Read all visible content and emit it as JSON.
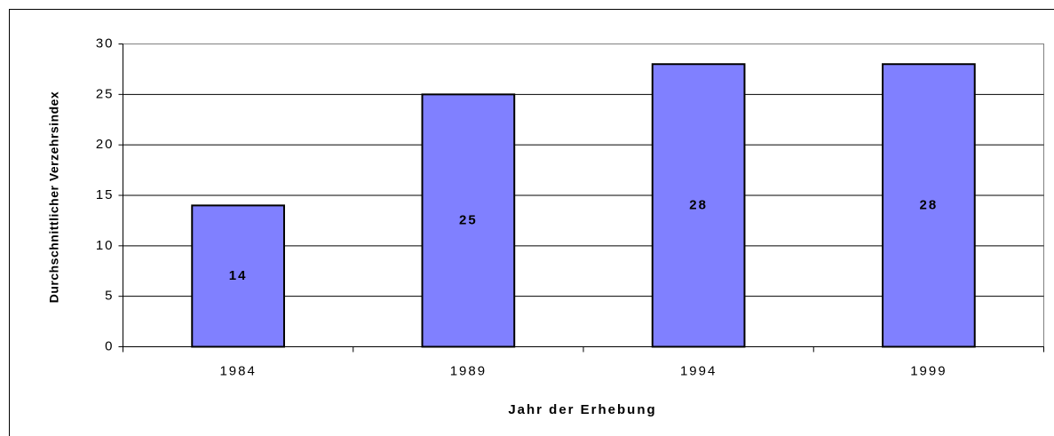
{
  "chart_data": {
    "type": "bar",
    "x_label": "Jahr der Erhebung",
    "y_label": "Durchschnittlicher Verzehrsindex",
    "categories": [
      "1984",
      "1989",
      "1994",
      "1999"
    ],
    "values": [
      14,
      25,
      28,
      28
    ],
    "color": "#8080ff",
    "ylim": [
      0,
      30
    ],
    "yticks": [
      0,
      5,
      10,
      15,
      20,
      25,
      30
    ],
    "grid": true
  }
}
